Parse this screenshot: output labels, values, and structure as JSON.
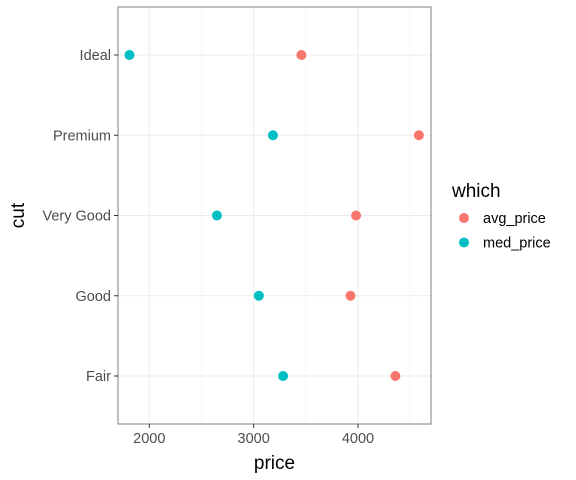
{
  "chart_data": {
    "type": "scatter",
    "title": "",
    "xlabel": "price",
    "ylabel": "cut",
    "xlim": [
      1700,
      4700
    ],
    "x_ticks": [
      2000,
      3000,
      4000
    ],
    "categories": [
      "Ideal",
      "Premium",
      "Very Good",
      "Good",
      "Fair"
    ],
    "series": [
      {
        "name": "avg_price",
        "color": "#F8766D",
        "values": [
          3458,
          4584,
          3982,
          3929,
          4359
        ]
      },
      {
        "name": "med_price",
        "color": "#00BFC4",
        "values": [
          1810,
          3185,
          2648,
          3050,
          3282
        ]
      }
    ],
    "legend": {
      "title": "which",
      "position": "right"
    },
    "grid": true
  }
}
